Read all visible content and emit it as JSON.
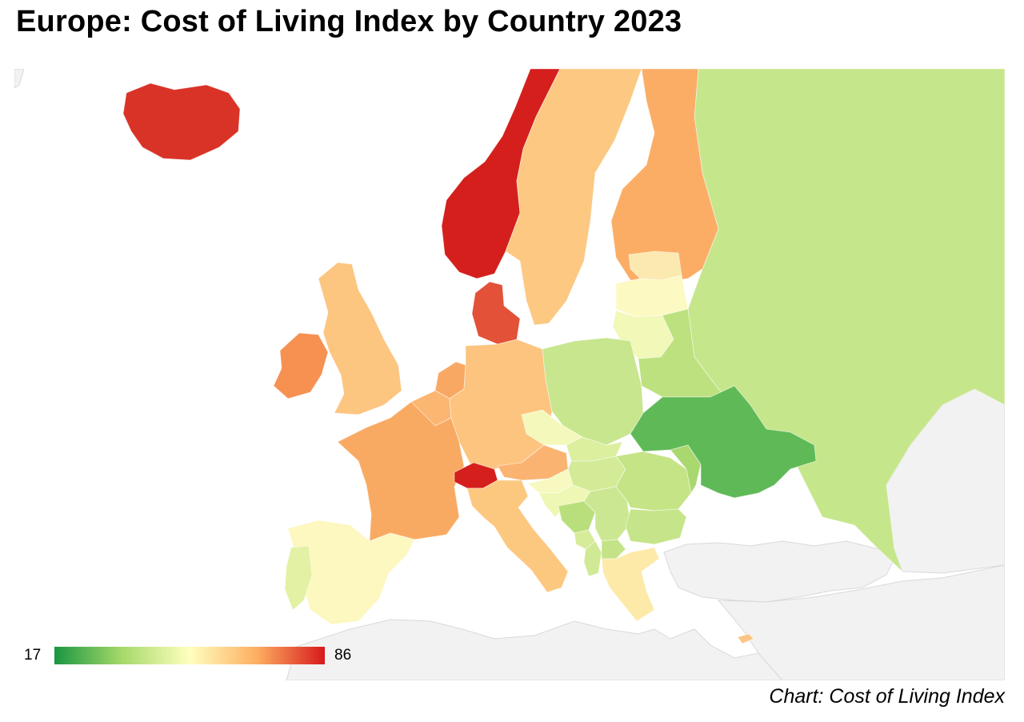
{
  "title": "Europe: Cost of Living Index by Country 2023",
  "source": "Chart: Cost of Living Index",
  "legend": {
    "min_label": "17",
    "max_label": "86",
    "scale": [
      "#1a9641",
      "#a6d96a",
      "#ffffbf",
      "#fdae61",
      "#d7191c"
    ]
  },
  "map": {
    "nodata_color": "#f2f2f2",
    "countries": [
      {
        "name": "Iceland",
        "color": "#d93327"
      },
      {
        "name": "Norway",
        "color": "#d41f1c"
      },
      {
        "name": "Sweden",
        "color": "#fcc882"
      },
      {
        "name": "Finland",
        "color": "#fbad66"
      },
      {
        "name": "Russia",
        "color": "#c6e68c"
      },
      {
        "name": "Estonia",
        "color": "#fbe9b0"
      },
      {
        "name": "Latvia",
        "color": "#fdf9c3"
      },
      {
        "name": "Lithuania",
        "color": "#f1f8b8"
      },
      {
        "name": "Belarus",
        "color": "#bde17f"
      },
      {
        "name": "Denmark",
        "color": "#e25138"
      },
      {
        "name": "Ireland",
        "color": "#f69151"
      },
      {
        "name": "United Kingdom",
        "color": "#fcc580"
      },
      {
        "name": "Netherlands",
        "color": "#f9a863"
      },
      {
        "name": "Belgium",
        "color": "#fbb672"
      },
      {
        "name": "Luxembourg",
        "color": "#f0764a"
      },
      {
        "name": "Germany",
        "color": "#fcc47e"
      },
      {
        "name": "France",
        "color": "#f9aa62"
      },
      {
        "name": "Switzerland",
        "color": "#d41f1c"
      },
      {
        "name": "Austria",
        "color": "#fbb372"
      },
      {
        "name": "Italy",
        "color": "#fcc880"
      },
      {
        "name": "Spain",
        "color": "#fdf7c0"
      },
      {
        "name": "Portugal",
        "color": "#e2f1a4"
      },
      {
        "name": "Poland",
        "color": "#c8e68e"
      },
      {
        "name": "Czechia",
        "color": "#f4f9bb"
      },
      {
        "name": "Slovakia",
        "color": "#dbef9f"
      },
      {
        "name": "Hungary",
        "color": "#d3eb96"
      },
      {
        "name": "Slovenia",
        "color": "#f7f9c0"
      },
      {
        "name": "Croatia",
        "color": "#eef7b3"
      },
      {
        "name": "Bosnia and Herzegovina",
        "color": "#b9df7c"
      },
      {
        "name": "Serbia",
        "color": "#cce792"
      },
      {
        "name": "Montenegro",
        "color": "#d6ec9b"
      },
      {
        "name": "North Macedonia",
        "color": "#c3e386"
      },
      {
        "name": "Albania",
        "color": "#d0e995"
      },
      {
        "name": "Romania",
        "color": "#c4e486"
      },
      {
        "name": "Moldova",
        "color": "#a9d86f"
      },
      {
        "name": "Bulgaria",
        "color": "#c6e58a"
      },
      {
        "name": "Greece",
        "color": "#fdeaa9"
      },
      {
        "name": "Ukraine",
        "color": "#5fb957"
      },
      {
        "name": "Cyprus",
        "color": "#fbc583"
      }
    ]
  }
}
